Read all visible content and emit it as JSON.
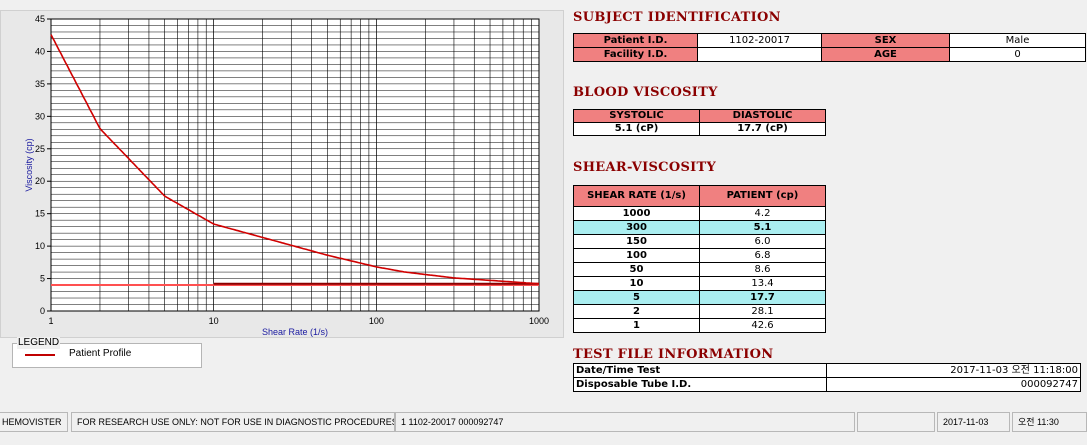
{
  "chart_data": {
    "type": "line",
    "xlabel": "Shear Rate (1/s)",
    "ylabel": "Viscosity (cp)",
    "xscale": "log",
    "xlim": [
      1,
      1000
    ],
    "ylim": [
      0,
      45
    ],
    "xticks": [
      "1",
      "10",
      "100",
      "1000"
    ],
    "yticks": [
      "0",
      "5",
      "10",
      "15",
      "20",
      "25",
      "30",
      "35",
      "40",
      "45"
    ],
    "grid": true,
    "series": [
      {
        "name": "Patient Profile",
        "color": "#d00000",
        "x": [
          1,
          2,
          5,
          10,
          50,
          100,
          150,
          300,
          1000
        ],
        "y": [
          42.6,
          28.1,
          17.7,
          13.4,
          8.6,
          6.8,
          6.0,
          5.1,
          4.2
        ]
      }
    ],
    "reference_lines": [
      {
        "color": "#ff5050",
        "y": 4.0,
        "x_from": 1,
        "x_to": 1000
      },
      {
        "color": "#8b0000",
        "y": 4.2,
        "x_from": 10,
        "x_to": 1000
      }
    ]
  },
  "legend": {
    "title": "LEGEND",
    "label": "Patient Profile"
  },
  "subject": {
    "title": "SUBJECT IDENTIFICATION",
    "patient_id_label": "Patient I.D.",
    "patient_id": "1102-20017",
    "sex_label": "SEX",
    "sex": "Male",
    "facility_label": "Facility I.D.",
    "facility": "",
    "age_label": "AGE",
    "age": "0"
  },
  "blood": {
    "title": "BLOOD VISCOSITY",
    "systolic_label": "SYSTOLIC",
    "diastolic_label": "DIASTOLIC",
    "systolic": "5.1 (cP)",
    "diastolic": "17.7 (cP)"
  },
  "shear": {
    "title": "SHEAR-VISCOSITY",
    "col_rate": "SHEAR RATE (1/s)",
    "col_patient": "PATIENT (cp)",
    "rows": [
      {
        "rate": "1000",
        "value": "4.2",
        "hl": false
      },
      {
        "rate": "300",
        "value": "5.1",
        "hl": true
      },
      {
        "rate": "150",
        "value": "6.0",
        "hl": false
      },
      {
        "rate": "100",
        "value": "6.8",
        "hl": false
      },
      {
        "rate": "50",
        "value": "8.6",
        "hl": false
      },
      {
        "rate": "10",
        "value": "13.4",
        "hl": false
      },
      {
        "rate": "5",
        "value": "17.7",
        "hl": true
      },
      {
        "rate": "2",
        "value": "28.1",
        "hl": false
      },
      {
        "rate": "1",
        "value": "42.6",
        "hl": false
      }
    ]
  },
  "file": {
    "title": "TEST FILE INFORMATION",
    "datetime_label": "Date/Time Test",
    "datetime_value": "2017-11-03  오전 11:18:00",
    "tube_label": "Disposable Tube I.D.",
    "tube_value": "000092747"
  },
  "statusbar": {
    "app": "HEMOVISTER",
    "notice": "FOR RESEARCH USE ONLY: NOT FOR USE IN DIAGNOSTIC PROCEDURES",
    "record": "1  1102-20017  000092747",
    "empty": "",
    "date": "2017-11-03",
    "time": "오전 11:30"
  }
}
